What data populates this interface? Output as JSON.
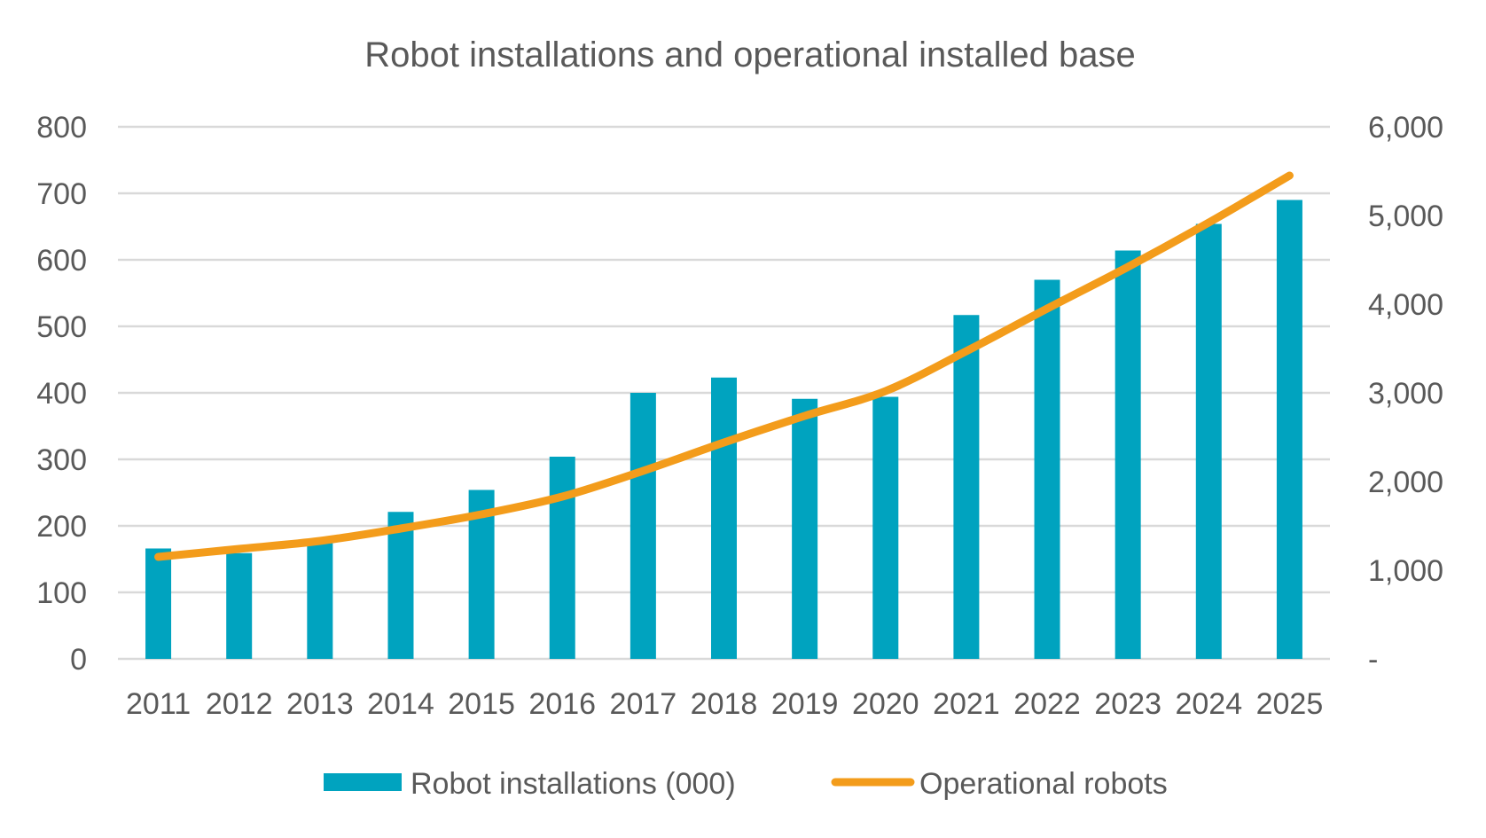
{
  "chart_data": {
    "type": "bar",
    "title": "Robot installations and operational installed base",
    "categories": [
      "2011",
      "2012",
      "2013",
      "2014",
      "2015",
      "2016",
      "2017",
      "2018",
      "2019",
      "2020",
      "2021",
      "2022",
      "2023",
      "2024",
      "2025"
    ],
    "series": [
      {
        "name": "Robot installations (000)",
        "type": "bar",
        "axis": "left",
        "color": "#00A3BF",
        "values": [
          166,
          159,
          178,
          221,
          254,
          304,
          400,
          423,
          391,
          394,
          517,
          570,
          614,
          654,
          690
        ]
      },
      {
        "name": "Operational robots",
        "type": "line",
        "axis": "right",
        "color": "#F39C1B",
        "values": [
          1150,
          1240,
          1330,
          1470,
          1630,
          1830,
          2120,
          2440,
          2740,
          3020,
          3470,
          3950,
          4420,
          4920,
          5450
        ]
      }
    ],
    "y_left": {
      "ylim": [
        0,
        800
      ],
      "ticks": [
        0,
        100,
        200,
        300,
        400,
        500,
        600,
        700,
        800
      ],
      "tick_labels": [
        "0",
        "100",
        "200",
        "300",
        "400",
        "500",
        "600",
        "700",
        "800"
      ]
    },
    "y_right": {
      "ylim": [
        0,
        6000
      ],
      "ticks": [
        0,
        1000,
        2000,
        3000,
        4000,
        5000,
        6000
      ],
      "tick_labels": [
        "-",
        "1,000",
        "2,000",
        "3,000",
        "4,000",
        "5,000",
        "6,000"
      ]
    },
    "grid": true,
    "legend_position": "bottom",
    "gridline_color": "#D9D9D9"
  }
}
